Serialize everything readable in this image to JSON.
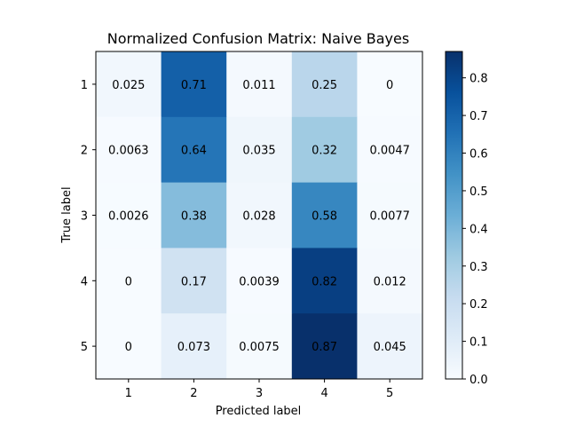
{
  "chart_data": {
    "type": "heatmap",
    "title": "Normalized Confusion Matrix: Naive Bayes",
    "xlabel": "Predicted label",
    "ylabel": "True label",
    "x_categories": [
      "1",
      "2",
      "3",
      "4",
      "5"
    ],
    "y_categories": [
      "1",
      "2",
      "3",
      "4",
      "5"
    ],
    "values": [
      [
        0.025,
        0.71,
        0.011,
        0.25,
        0
      ],
      [
        0.0063,
        0.64,
        0.035,
        0.32,
        0.0047
      ],
      [
        0.0026,
        0.38,
        0.028,
        0.58,
        0.0077
      ],
      [
        0,
        0.17,
        0.0039,
        0.82,
        0.012
      ],
      [
        0,
        0.073,
        0.0075,
        0.87,
        0.045
      ]
    ],
    "value_labels": [
      [
        "0.025",
        "0.71",
        "0.011",
        "0.25",
        "0"
      ],
      [
        "0.0063",
        "0.64",
        "0.035",
        "0.32",
        "0.0047"
      ],
      [
        "0.0026",
        "0.38",
        "0.028",
        "0.58",
        "0.0077"
      ],
      [
        "0",
        "0.17",
        "0.0039",
        "0.82",
        "0.012"
      ],
      [
        "0",
        "0.073",
        "0.0075",
        "0.87",
        "0.045"
      ]
    ],
    "colormap": "Blues",
    "colorbar": {
      "range": [
        0.0,
        0.87
      ],
      "ticks": [
        0.0,
        0.1,
        0.2,
        0.3,
        0.4,
        0.5,
        0.6,
        0.7,
        0.8
      ],
      "tick_labels": [
        "0.0",
        "0.1",
        "0.2",
        "0.3",
        "0.4",
        "0.5",
        "0.6",
        "0.7",
        "0.8"
      ]
    },
    "grid": false
  }
}
